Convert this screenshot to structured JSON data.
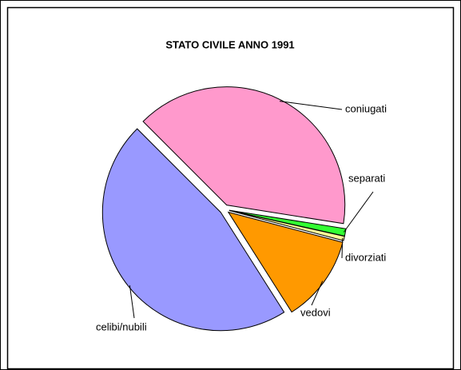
{
  "chart_data": {
    "type": "pie",
    "title": "STATO CIVILE ANNO 1991",
    "categories": [
      "coniugati",
      "separati",
      "divorziati",
      "vedovi",
      "celibi/nubili"
    ],
    "values": [
      40,
      1,
      0.6,
      11.9,
      46.5
    ],
    "colors": [
      "#ff99cc",
      "#33ff33",
      "#ffff99",
      "#ff9900",
      "#9999ff"
    ]
  }
}
